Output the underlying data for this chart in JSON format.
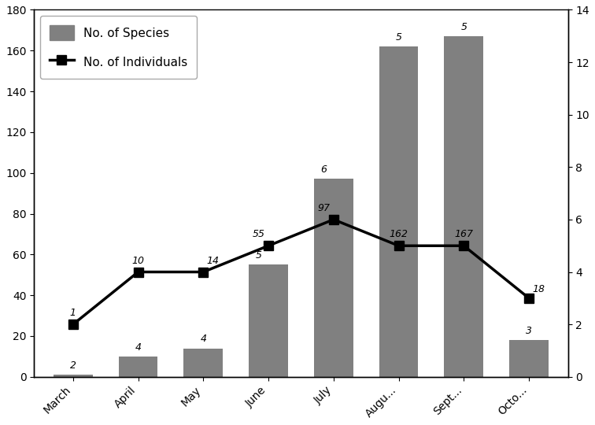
{
  "months": [
    "March",
    "April",
    "May",
    "June",
    "July",
    "Augu...",
    "Sept...",
    "Octo..."
  ],
  "indiv_vals": [
    1,
    10,
    14,
    55,
    97,
    162,
    167,
    18
  ],
  "species_vals": [
    2,
    4,
    4,
    5,
    6,
    5,
    5,
    3
  ],
  "bar_color": "#808080",
  "line_color": "#000000",
  "marker_style": "s",
  "marker_size": 8,
  "left_ylim": [
    0,
    180
  ],
  "right_ylim": [
    0,
    14
  ],
  "left_yticks": [
    0,
    20,
    40,
    60,
    80,
    100,
    120,
    140,
    160,
    180
  ],
  "right_yticks": [
    0,
    2,
    4,
    6,
    8,
    10,
    12,
    14
  ],
  "legend_species": "No. of Species",
  "legend_individuals": "No. of Individuals",
  "bar_label_vals": [
    "2",
    "4",
    "4",
    "5",
    "6",
    "5",
    "5",
    "3"
  ],
  "line_label_vals": [
    "1",
    "10",
    "14",
    "55",
    "97",
    "162",
    "167",
    "18"
  ],
  "background_color": "#ffffff",
  "fig_width": 7.56,
  "fig_height": 5.4,
  "dpi": 100
}
